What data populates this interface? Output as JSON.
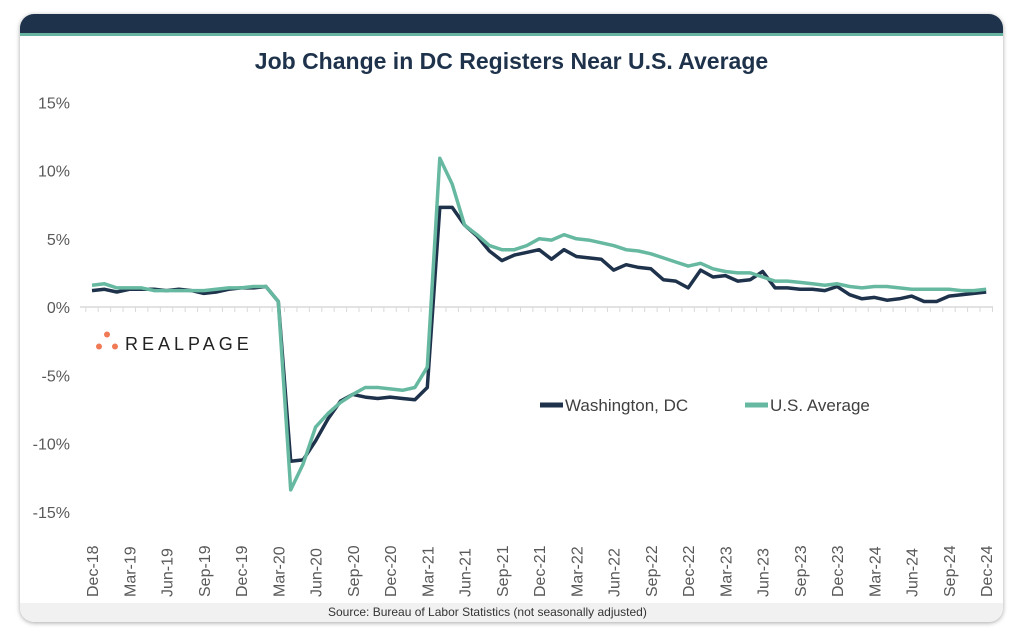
{
  "chart_data": {
    "type": "line",
    "title": "Job Change in DC Registers Near U.S. Average",
    "xlabel": "",
    "ylabel": "",
    "ylim": [
      -15,
      15
    ],
    "yticks": [
      "15%",
      "10%",
      "5%",
      "0%",
      "-5%",
      "-10%",
      "-15%"
    ],
    "ytick_values": [
      15,
      10,
      5,
      0,
      -5,
      -10,
      -15
    ],
    "xtick_labels": [
      "Dec-18",
      "Mar-19",
      "Jun-19",
      "Sep-19",
      "Dec-19",
      "Mar-20",
      "Jun-20",
      "Sep-20",
      "Dec-20",
      "Mar-21",
      "Jun-21",
      "Sep-21",
      "Dec-21",
      "Mar-22",
      "Jun-22",
      "Sep-22",
      "Dec-22",
      "Mar-23",
      "Jun-23",
      "Sep-23",
      "Dec-23",
      "Mar-24",
      "Jun-24",
      "Sep-24",
      "Dec-24"
    ],
    "x_start": "Dec-18",
    "x_frequency": "monthly",
    "legend_position": "center-right",
    "series": [
      {
        "name": "Washington, DC",
        "color": "#1e324b",
        "values": [
          1.2,
          1.3,
          1.1,
          1.3,
          1.3,
          1.3,
          1.2,
          1.3,
          1.2,
          1.0,
          1.1,
          1.3,
          1.4,
          1.4,
          1.5,
          0.4,
          -11.3,
          -11.2,
          -9.8,
          -8.2,
          -6.9,
          -6.4,
          -6.6,
          -6.7,
          -6.6,
          -6.7,
          -6.8,
          -5.9,
          7.3,
          7.3,
          6.0,
          5.2,
          4.1,
          3.4,
          3.8,
          4.0,
          4.2,
          3.5,
          4.2,
          3.7,
          3.6,
          3.5,
          2.7,
          3.1,
          2.9,
          2.8,
          2.0,
          1.9,
          1.4,
          2.7,
          2.2,
          2.3,
          1.9,
          2.0,
          2.6,
          1.4,
          1.4,
          1.3,
          1.3,
          1.2,
          1.5,
          0.9,
          0.6,
          0.7,
          0.5,
          0.6,
          0.8,
          0.4,
          0.4,
          0.8,
          0.9,
          1.0,
          1.1
        ]
      },
      {
        "name": "U.S. Average",
        "color": "#66b9a0",
        "values": [
          1.6,
          1.7,
          1.4,
          1.4,
          1.4,
          1.2,
          1.2,
          1.2,
          1.2,
          1.2,
          1.3,
          1.4,
          1.4,
          1.5,
          1.5,
          0.4,
          -13.4,
          -11.5,
          -8.8,
          -7.8,
          -7.0,
          -6.4,
          -5.9,
          -5.9,
          -6.0,
          -6.1,
          -5.9,
          -4.4,
          10.9,
          9.0,
          6.0,
          5.3,
          4.5,
          4.2,
          4.2,
          4.5,
          5.0,
          4.9,
          5.3,
          5.0,
          4.9,
          4.7,
          4.5,
          4.2,
          4.1,
          3.9,
          3.6,
          3.3,
          3.0,
          3.2,
          2.8,
          2.6,
          2.5,
          2.5,
          2.2,
          1.9,
          1.9,
          1.8,
          1.7,
          1.6,
          1.7,
          1.5,
          1.4,
          1.5,
          1.5,
          1.4,
          1.3,
          1.3,
          1.3,
          1.3,
          1.2,
          1.2,
          1.3
        ]
      }
    ]
  },
  "source": "Source: Bureau of Labor Statistics (not seasonally adjusted)",
  "logo": {
    "text": "REALPAGE",
    "dot_color": "#ef7a55"
  }
}
